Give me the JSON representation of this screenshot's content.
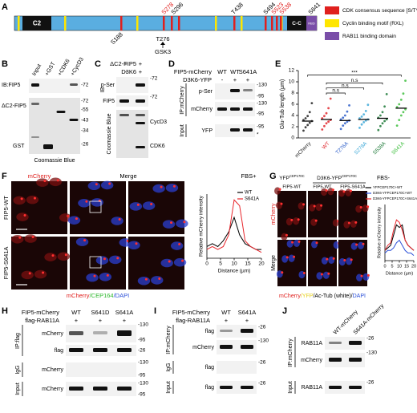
{
  "panel_a": {
    "label": "A",
    "domains": [
      "C2",
      "C-C",
      "RBD"
    ],
    "sites_above": [
      "S278",
      "S296",
      "T438",
      "S494",
      "S523",
      "S538",
      "S641"
    ],
    "sites_below": [
      "S188",
      "T276"
    ],
    "kinase": "GSK3",
    "legend": [
      "CDK consensus sequence [S/T*]P",
      "Cyclin binding motif (RXL)",
      "RAB11 binding domain"
    ]
  },
  "panel_b": {
    "label": "B",
    "lanes": [
      "Input",
      "+GST",
      "+CDK6",
      "+CycD3"
    ],
    "blot_labels": [
      "IB:FIP5",
      "ΔC2-FIP5",
      "GST"
    ],
    "stain": "Coomassie Blue",
    "markers": [
      "-72",
      "-72",
      "-55",
      "-43",
      "-34",
      "-26"
    ]
  },
  "panel_c": {
    "label": "C",
    "conditions": [
      {
        "name": "ΔC2-FIP5",
        "states": [
          "+",
          "+"
        ]
      },
      {
        "name": "D3K6",
        "states": [
          "-",
          "+"
        ]
      }
    ],
    "ib": "IB",
    "blot_labels": [
      "p-Ser",
      "FIP5",
      "CycD3",
      "CDK6"
    ],
    "stain": "Coomassie Blue",
    "markers": [
      "-72",
      "-72"
    ]
  },
  "panel_d": {
    "label": "D",
    "conditions": [
      {
        "name": "FIP5-mCherry",
        "states": [
          "WT",
          "WT",
          "S641A"
        ]
      },
      {
        "name": "D3K6-YFP",
        "states": [
          "-",
          "+",
          "+"
        ]
      }
    ],
    "groups": [
      "IP:mCherry",
      "Input"
    ],
    "blot_labels": [
      "p-Ser",
      "mCherry",
      "YFP"
    ],
    "markers": [
      "-130",
      "-95",
      "-130",
      "-95",
      "-95",
      "*"
    ]
  },
  "panel_f": {
    "label": "F",
    "columns": [
      "mCherry",
      "Merge"
    ],
    "condition": "FBS+",
    "rows": [
      "FIP5-WT",
      "FIP5-S641A"
    ],
    "caption_parts": [
      "mCherry",
      "/CEP164",
      "/DAPI"
    ]
  },
  "panel_g": {
    "label": "G",
    "columns": [
      {
        "base": "YFP",
        "sup": "CEP170C"
      },
      {
        "base": "D3K6-YFP",
        "sup": "CEP170C"
      }
    ],
    "condition": "FBS-",
    "subcolumns": [
      "FIP5-WT",
      "FIP5-WT",
      "FIP5-S641A"
    ],
    "rows": [
      "mCherry",
      "Merge"
    ],
    "caption_parts": [
      "mCherry",
      "/YFP",
      "/Ac-Tub (white)/",
      "DAPI"
    ]
  },
  "panel_h": {
    "label": "H",
    "conditions": [
      {
        "name": "FIP5-mCherry",
        "states": [
          "WT",
          "S641D",
          "S641A"
        ]
      },
      {
        "name": "flag-RAB11A",
        "states": [
          "+",
          "+",
          "+"
        ]
      }
    ],
    "groups": [
      "IP:flag",
      "IgG",
      "Input"
    ],
    "blot_labels": [
      "mCherry",
      "flag",
      "mCherry",
      "mCherry"
    ],
    "markers": [
      "-130",
      "-95",
      "-26",
      "-130",
      "-95",
      "-130",
      "-95"
    ]
  },
  "panel_i": {
    "label": "I",
    "conditions": [
      {
        "name": "FIP5-mCherry",
        "states": [
          "WT",
          "S641A"
        ]
      },
      {
        "name": "flag-RAB11A",
        "states": [
          "+",
          "+"
        ]
      }
    ],
    "groups": [
      "IP:mCherry",
      "IgG",
      "Input"
    ],
    "blot_labels": [
      "flag",
      "mCherry",
      "flag",
      "flag"
    ],
    "markers": [
      "-26",
      "-130",
      "-26",
      "-26"
    ]
  },
  "panel_j": {
    "label": "J",
    "lanes": [
      "WT-mCherry",
      "S641A-mCherry"
    ],
    "groups": [
      "IP:mCherry",
      "Input"
    ],
    "blot_labels": [
      "RAB11A",
      "mCherry",
      "RAB11A"
    ],
    "markers": [
      "-26",
      "-130",
      "-26"
    ]
  },
  "chart_data": [
    {
      "type": "strip",
      "label": "E",
      "ylabel": "Glu-Tub length (μm)",
      "categories": [
        "mCherry",
        "WT",
        "T276A",
        "S278A",
        "S538A",
        "S641A"
      ],
      "colors": [
        "#222222",
        "#e0282e",
        "#2a5cc8",
        "#3fa9d8",
        "#1f7a3a",
        "#3fbf3f"
      ],
      "points": [
        [
          1.3,
          1.9,
          2.3,
          2.7,
          3.0,
          3.2,
          3.5,
          3.9,
          4.6,
          6.2
        ],
        [
          1.5,
          2.1,
          2.6,
          2.9,
          3.2,
          3.5,
          3.9,
          4.4,
          5.3,
          7.0
        ],
        [
          1.6,
          2.2,
          2.6,
          2.9,
          3.1,
          3.3,
          3.6,
          4.0,
          4.7,
          5.8
        ],
        [
          1.8,
          2.4,
          2.8,
          3.1,
          3.3,
          3.5,
          3.8,
          4.2,
          4.8,
          5.9
        ],
        [
          1.4,
          2.1,
          2.6,
          3.0,
          3.3,
          3.6,
          4.0,
          4.6,
          5.6,
          7.8
        ],
        [
          2.2,
          3.2,
          4.0,
          4.6,
          5.1,
          5.5,
          6.0,
          6.8,
          7.9,
          10.2
        ]
      ],
      "means": [
        3.0,
        3.3,
        3.1,
        3.3,
        3.5,
        5.3
      ],
      "ylim": [
        0,
        12
      ],
      "yticks": [
        0,
        2,
        4,
        6,
        8,
        10,
        12
      ],
      "annotations": [
        "***",
        "n.s",
        "n.s",
        "n.s"
      ]
    },
    {
      "type": "line",
      "xlabel": "Distance (µm)",
      "ylabel": "Relative mCherry intensity",
      "x": [
        0,
        2,
        4,
        6,
        8,
        10,
        12,
        14,
        16,
        18,
        20
      ],
      "xlim": [
        0,
        20
      ],
      "xticks": [
        0,
        5,
        10,
        15,
        20
      ],
      "ylim": [
        0,
        1.1
      ],
      "series": [
        {
          "name": "WT",
          "color": "#000000",
          "values": [
            0.2,
            0.25,
            0.2,
            0.3,
            0.45,
            0.7,
            0.4,
            0.25,
            0.2,
            0.15,
            0.15
          ]
        },
        {
          "name": "S641A",
          "color": "#e8242a",
          "values": [
            0.15,
            0.2,
            0.15,
            0.2,
            0.4,
            1.0,
            0.9,
            0.3,
            0.2,
            0.15,
            0.1
          ]
        }
      ]
    },
    {
      "type": "line",
      "xlabel": "Distance (µm)",
      "ylabel": "Relative mCherry intensity",
      "x": [
        0,
        2,
        4,
        6,
        8,
        10,
        12,
        14,
        16,
        18,
        20
      ],
      "xlim": [
        0,
        20
      ],
      "xticks": [
        0,
        5,
        10,
        15,
        20
      ],
      "ylim": [
        0,
        1.1
      ],
      "series": [
        {
          "name": "YFPCEP170C+WT",
          "color": "#000000",
          "values": [
            0.2,
            0.25,
            0.3,
            0.5,
            0.7,
            0.65,
            0.7,
            0.4,
            0.3,
            0.25,
            0.2
          ]
        },
        {
          "name": "D3K6-YFPCEP170C+WT",
          "color": "#2a4fd8",
          "values": [
            0.15,
            0.2,
            0.2,
            0.25,
            0.35,
            0.4,
            0.3,
            0.2,
            0.15,
            0.15,
            0.1
          ]
        },
        {
          "name": "D3K6-YFPCEP170C+S641A",
          "color": "#e8242a",
          "values": [
            0.2,
            0.3,
            0.35,
            0.6,
            0.8,
            0.75,
            0.6,
            0.4,
            0.3,
            0.25,
            0.2
          ]
        }
      ]
    }
  ]
}
